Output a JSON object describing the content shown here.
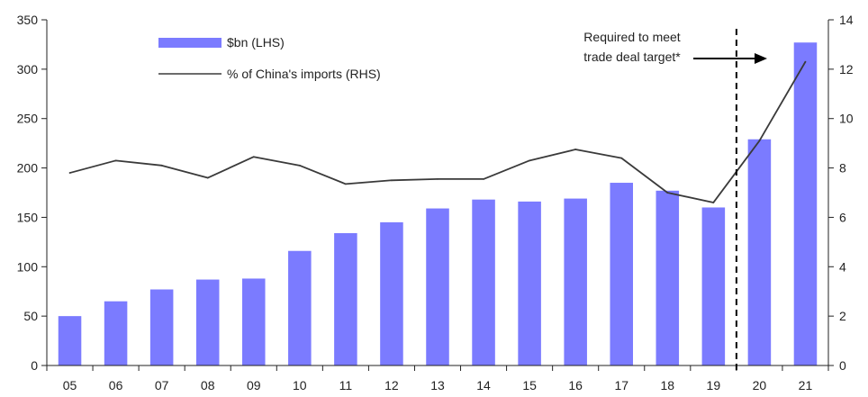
{
  "chart_data": {
    "type": "bar",
    "categories": [
      "05",
      "06",
      "07",
      "08",
      "09",
      "10",
      "11",
      "12",
      "13",
      "14",
      "15",
      "16",
      "17",
      "18",
      "19",
      "20",
      "21"
    ],
    "series": [
      {
        "name": "$bn (LHS)",
        "type": "bar",
        "axis": "left",
        "color": "#7b7bff",
        "values": [
          50,
          65,
          77,
          87,
          88,
          116,
          134,
          145,
          159,
          168,
          166,
          169,
          185,
          177,
          160,
          229,
          327
        ]
      },
      {
        "name": "% of China's imports (RHS)",
        "type": "line",
        "axis": "right",
        "color": "#3a3a3a",
        "values": [
          7.8,
          8.3,
          8.1,
          7.6,
          8.45,
          8.1,
          7.35,
          7.5,
          7.55,
          7.55,
          8.3,
          8.75,
          8.4,
          7.0,
          6.6,
          9.1,
          12.3
        ]
      }
    ],
    "y_left": {
      "min": 0,
      "max": 350,
      "ticks": [
        0,
        50,
        100,
        150,
        200,
        250,
        300,
        350
      ]
    },
    "y_right": {
      "min": 0,
      "max": 14,
      "ticks": [
        0,
        2,
        4,
        6,
        8,
        10,
        12,
        14
      ]
    },
    "grid": false,
    "legend_position": "top-left",
    "divider_after_category": "19",
    "annotation": {
      "lines": [
        "Required to meet",
        "trade deal target*"
      ]
    }
  }
}
